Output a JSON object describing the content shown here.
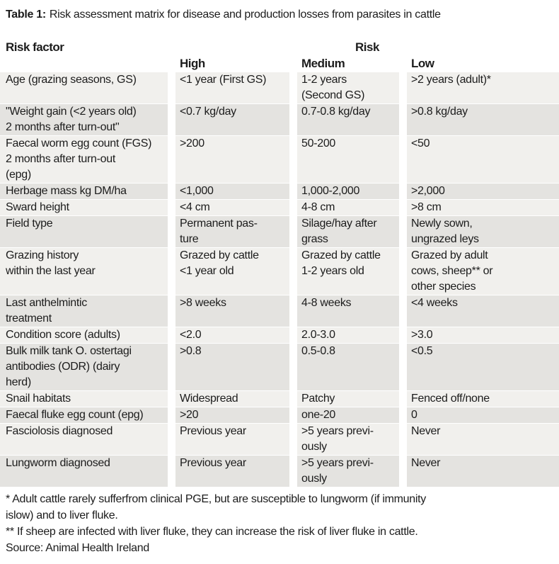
{
  "title": {
    "label": "Table 1:",
    "text": "Risk assessment matrix for disease and production losses from parasites in cattle"
  },
  "table": {
    "group_header": {
      "risk_factor": "Risk factor",
      "risk": "Risk"
    },
    "column_headers": {
      "high": "High",
      "medium": "Medium",
      "low": "Low"
    },
    "rows": [
      {
        "factor": "Age (grazing seasons, GS)",
        "high": "<1 year (First GS)",
        "medium": "1-2 years\n(Second GS)",
        "low": ">2 years (adult)*"
      },
      {
        "factor": "\"Weight gain (<2 years old)\n2 months after turn-out\"",
        "high": "<0.7 kg/day",
        "medium": "0.7-0.8 kg/day",
        "low": ">0.8 kg/day"
      },
      {
        "factor": "Faecal worm egg count (FGS)\n2 months after turn-out\n(epg)",
        "high": ">200",
        "medium": "50-200",
        "low": "<50"
      },
      {
        "factor": "Herbage mass kg DM/ha",
        "high": "<1,000",
        "medium": "1,000-2,000",
        "low": ">2,000"
      },
      {
        "factor": "Sward height",
        "high": "<4 cm",
        "medium": "4-8 cm",
        "low": ">8 cm"
      },
      {
        "factor": "Field type",
        "high": "Permanent pas-\nture",
        "medium": "Silage/hay after\ngrass",
        "low": "Newly sown,\nungrazed leys"
      },
      {
        "factor": "Grazing history\nwithin the last year",
        "high": "Grazed by cattle\n<1 year old",
        "medium": "Grazed by cattle\n1-2 years old",
        "low": "Grazed by adult\ncows, sheep** or\nother species"
      },
      {
        "factor": "Last anthelmintic\ntreatment",
        "high": ">8 weeks",
        "medium": "4-8 weeks",
        "low": "<4 weeks"
      },
      {
        "factor": "Condition score (adults)",
        "high": "<2.0",
        "medium": "2.0-3.0",
        "low": ">3.0"
      },
      {
        "factor": "Bulk milk tank O. ostertagi\nantibodies (ODR) (dairy\nherd)",
        "high": ">0.8",
        "medium": "0.5-0.8",
        "low": "<0.5"
      },
      {
        "factor": "Snail habitats",
        "high": "Widespread",
        "medium": "Patchy",
        "low": "Fenced off/none"
      },
      {
        "factor": "Faecal fluke egg count (epg)",
        "high": ">20",
        "medium": "one-20",
        "low": "0"
      },
      {
        "factor": "Fasciolosis diagnosed",
        "high": "Previous year",
        "medium": ">5 years previ-\nously",
        "low": "Never"
      },
      {
        "factor": "Lungworm diagnosed",
        "high": "Previous year",
        "medium": ">5 years previ-\nously",
        "low": "Never"
      }
    ]
  },
  "footnotes": [
    "* Adult cattle rarely sufferfrom clinical PGE, but are susceptible to lungworm (if immunity\nislow) and to liver fluke.",
    "** If sheep are infected with liver fluke, they can increase the risk of liver fluke in cattle.",
    "Source: Animal Health Ireland"
  ],
  "colors": {
    "page_background": "#ffffff",
    "row_light": "#f1f0ed",
    "row_dark": "#e4e3e0",
    "text": "#1c1c1c"
  }
}
